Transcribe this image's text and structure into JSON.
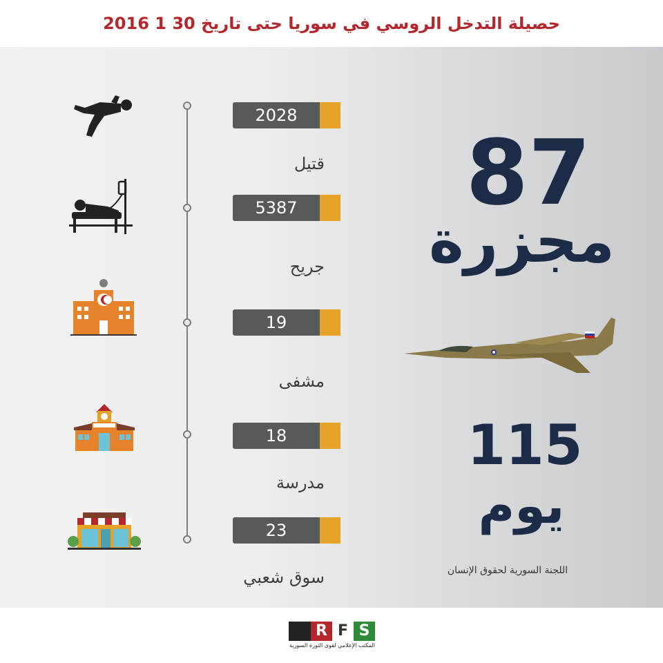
{
  "title": "حصيلة التدخل الروسي في سوريا حتى تاريخ 30 1 2016",
  "stats": [
    {
      "value": "2028",
      "label": "قتيل",
      "icon": "fallen-person-icon"
    },
    {
      "value": "5387",
      "label": "جريح",
      "icon": "injured-patient-icon"
    },
    {
      "value": "19",
      "label": "مشفى",
      "icon": "hospital-icon"
    },
    {
      "value": "18",
      "label": "مدرسة",
      "icon": "school-icon"
    },
    {
      "value": "23",
      "label": "سوق شعبي",
      "icon": "market-icon"
    }
  ],
  "massacres": {
    "number": "87",
    "label": "مجزرة"
  },
  "days": {
    "number": "115",
    "label": "يوم"
  },
  "aircraft_icon": "fighter-jet-icon",
  "source": "اللجنة السورية لحقوق الإنسان",
  "logo": {
    "letters": [
      "R",
      "F",
      "S"
    ],
    "subtitle": "المكتب الإعلامي لقوى الثورة السورية"
  },
  "colors": {
    "title": "#b3272d",
    "bar": "#58595b",
    "accent": "#e6a127",
    "big_text": "#1c2b46",
    "icons": "#e6822a"
  }
}
